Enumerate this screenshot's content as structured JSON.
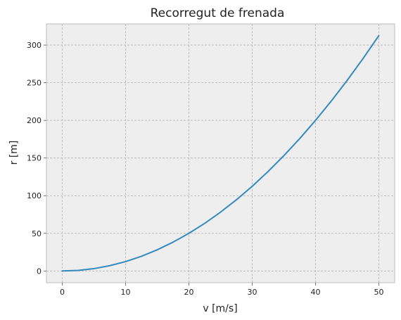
{
  "chart_data": {
    "type": "line",
    "title": "Recorregut de frenada",
    "xlabel": "v [m/s]",
    "ylabel": "r [m]",
    "xlim": [
      -2.5,
      52.5
    ],
    "ylim": [
      -15.6,
      328.1
    ],
    "xticks": [
      "0",
      "10",
      "20",
      "30",
      "40",
      "50"
    ],
    "yticks": [
      "0",
      "50",
      "100",
      "150",
      "200",
      "250",
      "300"
    ],
    "grid": true,
    "series": [
      {
        "color": "#348abd",
        "x": [
          0,
          2.5,
          5,
          7.5,
          10,
          12.5,
          15,
          17.5,
          20,
          22.5,
          25,
          27.5,
          30,
          32.5,
          35,
          37.5,
          40,
          42.5,
          45,
          47.5,
          50
        ],
        "y": [
          0,
          0.78,
          3.13,
          7.03,
          12.5,
          19.53,
          28.13,
          38.28,
          50,
          63.28,
          78.13,
          94.53,
          112.5,
          132.03,
          153.13,
          175.78,
          200,
          225.78,
          253.13,
          282.03,
          312.5
        ]
      }
    ]
  }
}
